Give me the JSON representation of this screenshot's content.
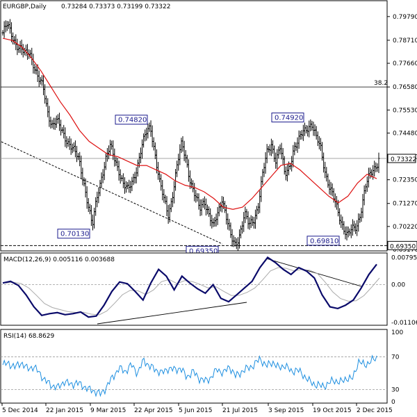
{
  "chart_data": [
    {
      "type": "candlestick",
      "title": "EURGBP,Daily",
      "ohlc_header": "0.73284 0.73373 0.73199 0.73322",
      "ylim": [
        0.6917,
        0.8045
      ],
      "yticks": [
        "0.79790",
        "0.78710",
        "0.77660",
        "0.76580",
        "0.75530",
        "0.74480",
        "0.73400",
        "0.72350",
        "0.71270",
        "0.70220",
        "0.69170"
      ],
      "xticks": [
        "5 Dec 2014",
        "22 Jan 2015",
        "9 Mar 2015",
        "22 Apr 2015",
        "5 Jun 2015",
        "21 Jul 2015",
        "3 Sep 2015",
        "19 Oct 2015",
        "2 Dec 2015"
      ],
      "current_price": "0.73322",
      "support_level": "0.69350",
      "fib_label": "38.2",
      "fib_level": 0.7658,
      "annotations": [
        "0.70130",
        "0.74820",
        "0.69350",
        "0.74920",
        "0.69810"
      ],
      "close_path": [
        0.7905,
        0.7935,
        0.7895,
        0.786,
        0.783,
        0.78,
        0.782,
        0.776,
        0.769,
        0.765,
        0.755,
        0.749,
        0.75,
        0.746,
        0.743,
        0.74,
        0.736,
        0.732,
        0.724,
        0.713,
        0.7013,
        0.715,
        0.725,
        0.733,
        0.738,
        0.733,
        0.728,
        0.721,
        0.718,
        0.723,
        0.73,
        0.738,
        0.744,
        0.7482,
        0.736,
        0.722,
        0.714,
        0.708,
        0.718,
        0.73,
        0.74,
        0.733,
        0.722,
        0.715,
        0.71,
        0.715,
        0.708,
        0.701,
        0.708,
        0.716,
        0.706,
        0.696,
        0.6935,
        0.7,
        0.708,
        0.702,
        0.705,
        0.712,
        0.725,
        0.735,
        0.74,
        0.733,
        0.738,
        0.725,
        0.73,
        0.738,
        0.74,
        0.745,
        0.748,
        0.7492,
        0.742,
        0.738,
        0.728,
        0.72,
        0.714,
        0.708,
        0.703,
        0.6981,
        0.7,
        0.702,
        0.71,
        0.72,
        0.725,
        0.729,
        0.7332
      ],
      "ma_path": [
        0.788,
        0.787,
        0.784,
        0.779,
        0.773,
        0.766,
        0.759,
        0.753,
        0.746,
        0.741,
        0.738,
        0.735,
        0.734,
        0.732,
        0.73,
        0.73,
        0.728,
        0.726,
        0.723,
        0.721,
        0.72,
        0.718,
        0.715,
        0.711,
        0.71,
        0.711,
        0.715,
        0.72,
        0.725,
        0.73,
        0.731,
        0.728,
        0.724,
        0.72,
        0.716,
        0.713,
        0.716,
        0.722,
        0.726,
        0.724
      ],
      "macd_title": "MACD(12,26,9) 0.005116 0.003688",
      "macd_ylim": [
        -0.0115,
        0.0085
      ],
      "macd_yticks": [
        "0.00795",
        "0.00",
        "-0.011067"
      ],
      "macd_path": [
        0.0005,
        0.001,
        -0.0002,
        -0.003,
        -0.0065,
        -0.009,
        -0.0085,
        -0.0082,
        -0.0088,
        -0.0085,
        -0.008,
        -0.0095,
        -0.0092,
        -0.006,
        -0.002,
        0.0008,
        0.0003,
        -0.002,
        -0.0045,
        0.0005,
        0.0045,
        0.0025,
        -0.0015,
        0.0025,
        0.0005,
        -0.0012,
        -0.0025,
        0.0,
        -0.004,
        -0.005,
        -0.003,
        -0.001,
        0.001,
        0.005,
        0.008,
        0.0065,
        0.0045,
        0.003,
        0.005,
        0.004,
        0.002,
        -0.003,
        -0.0065,
        -0.007,
        -0.006,
        -0.0045,
        -0.001,
        0.003,
        0.006
      ],
      "rsi_title": "RSI(14) 68.8629",
      "rsi_ylim": [
        15,
        100
      ],
      "rsi_yticks": [
        "100",
        "70",
        "30",
        "0"
      ],
      "rsi_path": [
        60,
        62,
        57,
        63,
        55,
        58,
        50,
        40,
        35,
        32,
        40,
        36,
        38,
        35,
        30,
        28,
        24,
        34,
        46,
        56,
        52,
        60,
        50,
        66,
        58,
        54,
        50,
        56,
        54,
        56,
        45,
        52,
        44,
        40,
        45,
        55,
        50,
        58,
        46,
        52,
        56,
        60,
        68,
        58,
        64,
        56,
        60,
        52,
        54,
        48,
        40,
        36,
        34,
        36,
        42,
        38,
        44,
        42,
        64,
        60,
        64,
        69
      ]
    }
  ]
}
